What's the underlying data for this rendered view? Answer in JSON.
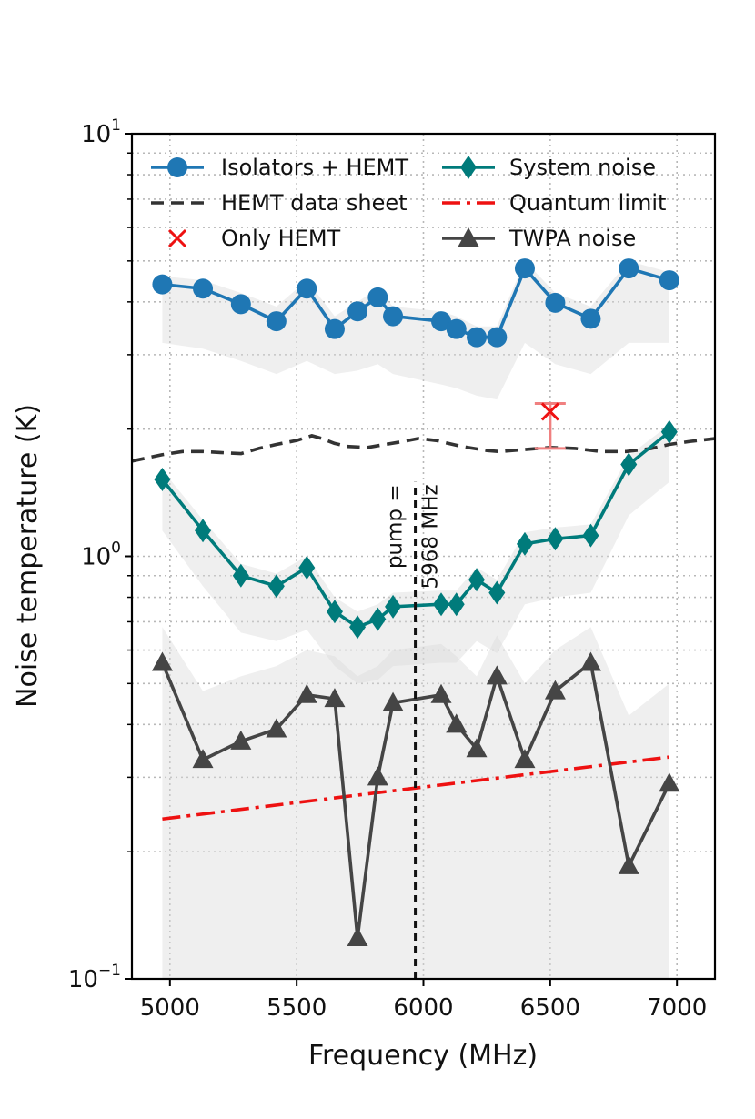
{
  "chart_data": {
    "type": "line",
    "xlabel": "Frequency (MHz)",
    "ylabel": "Noise temperature (K)",
    "yscale": "log",
    "xlim": [
      4850,
      7150
    ],
    "ylim": [
      0.1,
      10
    ],
    "x_ticks": [
      5000,
      5500,
      6000,
      6500,
      7000
    ],
    "x_tick_labels": [
      "5000",
      "5500",
      "6000",
      "6500",
      "7000"
    ],
    "y_major_ticks": [
      0.1,
      1,
      10
    ],
    "y_tick_labels": [
      {
        "base": "10",
        "exp": "−1"
      },
      {
        "base": "10",
        "exp": "0"
      },
      {
        "base": "10",
        "exp": "1"
      }
    ],
    "grid": true,
    "legend_position": "top",
    "series": [
      {
        "name": "Isolators + HEMT",
        "color": "#1f77b4",
        "marker": "circle",
        "x": [
          4970,
          5130,
          5280,
          5420,
          5540,
          5650,
          5740,
          5820,
          5880,
          6070,
          6130,
          6210,
          6290,
          6400,
          6520,
          6660,
          6810,
          6970
        ],
        "y": [
          4.4,
          4.3,
          3.95,
          3.6,
          4.3,
          3.45,
          3.8,
          4.1,
          3.7,
          3.6,
          3.45,
          3.3,
          3.3,
          4.8,
          3.98,
          3.65,
          4.8,
          4.5
        ],
        "band_lower": [
          3.2,
          3.1,
          2.9,
          2.7,
          2.9,
          2.7,
          2.75,
          2.85,
          2.7,
          2.55,
          2.5,
          2.4,
          2.35,
          3.2,
          2.85,
          2.7,
          3.2,
          3.2
        ],
        "band_upper": [
          4.6,
          4.5,
          4.2,
          3.9,
          4.5,
          3.7,
          4.0,
          4.3,
          3.9,
          3.8,
          3.7,
          3.5,
          3.5,
          5.0,
          4.2,
          3.9,
          5.0,
          4.7
        ]
      },
      {
        "name": "System noise",
        "color": "#007b7b",
        "marker": "diamond",
        "x": [
          4970,
          5130,
          5280,
          5420,
          5540,
          5650,
          5740,
          5820,
          5880,
          6070,
          6130,
          6210,
          6290,
          6400,
          6520,
          6660,
          6810,
          6970
        ],
        "y": [
          1.52,
          1.15,
          0.9,
          0.85,
          0.94,
          0.74,
          0.68,
          0.71,
          0.76,
          0.77,
          0.77,
          0.88,
          0.82,
          1.07,
          1.1,
          1.12,
          1.65,
          1.97
        ],
        "band_lower": [
          1.15,
          0.85,
          0.66,
          0.63,
          0.67,
          0.55,
          0.5,
          0.51,
          0.55,
          0.56,
          0.56,
          0.63,
          0.59,
          0.77,
          0.8,
          0.82,
          1.25,
          1.5
        ],
        "band_upper": [
          1.6,
          1.22,
          0.96,
          0.91,
          1.0,
          0.8,
          0.74,
          0.77,
          0.82,
          0.83,
          0.83,
          0.94,
          0.88,
          1.14,
          1.17,
          1.19,
          1.73,
          2.05
        ]
      },
      {
        "name": "TWPA noise",
        "color": "#454545",
        "marker": "triangle",
        "x": [
          4970,
          5130,
          5280,
          5420,
          5540,
          5650,
          5740,
          5820,
          5880,
          6070,
          6130,
          6210,
          6290,
          6400,
          6520,
          6660,
          6810,
          6970
        ],
        "y": [
          0.56,
          0.33,
          0.365,
          0.39,
          0.47,
          0.46,
          0.125,
          0.3,
          0.45,
          0.47,
          0.4,
          0.35,
          0.52,
          0.33,
          0.48,
          0.56,
          0.185,
          0.29
        ],
        "band_lower": [
          0.1,
          0.1,
          0.1,
          0.1,
          0.1,
          0.1,
          0.1,
          0.1,
          0.1,
          0.1,
          0.1,
          0.1,
          0.1,
          0.1,
          0.1,
          0.1,
          0.1,
          0.1
        ],
        "band_upper": [
          0.68,
          0.48,
          0.52,
          0.55,
          0.6,
          0.58,
          0.52,
          0.55,
          0.6,
          0.62,
          0.58,
          0.52,
          0.65,
          0.5,
          0.6,
          0.68,
          0.42,
          0.5
        ]
      },
      {
        "name": "HEMT data sheet",
        "color": "#333333",
        "linestyle": "dashed",
        "x": [
          4850,
          4970,
          5050,
          5130,
          5200,
          5280,
          5350,
          5420,
          5500,
          5560,
          5600,
          5650,
          5700,
          5780,
          5850,
          5920,
          5980,
          6050,
          6150,
          6250,
          6300,
          6350,
          6400,
          6500,
          6600,
          6700,
          6800,
          6900,
          6970,
          7050,
          7150
        ],
        "y": [
          1.68,
          1.74,
          1.77,
          1.77,
          1.76,
          1.75,
          1.8,
          1.84,
          1.88,
          1.93,
          1.9,
          1.85,
          1.82,
          1.81,
          1.84,
          1.87,
          1.9,
          1.88,
          1.82,
          1.78,
          1.77,
          1.78,
          1.79,
          1.81,
          1.8,
          1.77,
          1.77,
          1.8,
          1.84,
          1.87,
          1.9
        ]
      },
      {
        "name": "Quantum limit",
        "color": "#ee1111",
        "linestyle": "dashdot",
        "x": [
          4970,
          6970
        ],
        "y": [
          0.239,
          0.335
        ]
      },
      {
        "name": "Only HEMT",
        "color": "#ee1111",
        "marker": "x",
        "x": [
          6500
        ],
        "y": [
          2.2
        ],
        "error_lower": 1.8,
        "error_upper": 2.3
      }
    ],
    "annotations": [
      {
        "type": "vline",
        "x": 5968,
        "ymin": 0.1,
        "ymax": 1.5,
        "color": "#111111",
        "linestyle": "dashed"
      },
      {
        "type": "text",
        "lines": [
          "pump =",
          "5968 MHz"
        ],
        "x": 5968,
        "rotation": -90
      }
    ]
  }
}
